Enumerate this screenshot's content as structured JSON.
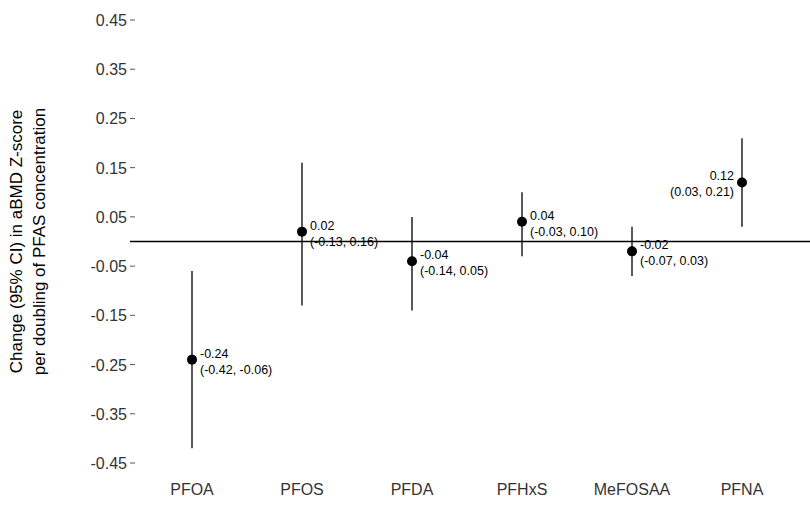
{
  "chart_data": {
    "type": "errorbar",
    "y_label": [
      "Change (95% CI) in aBMD Z-score",
      "per doubling of PFAS concentration"
    ],
    "categories": [
      "PFOA",
      "PFOS",
      "PFDA",
      "PFHxS",
      "MeFOSAA",
      "PFNA"
    ],
    "values": [
      -0.24,
      0.02,
      -0.04,
      0.04,
      -0.02,
      0.12
    ],
    "lower": [
      -0.42,
      -0.13,
      -0.14,
      -0.03,
      -0.07,
      0.03
    ],
    "upper": [
      -0.06,
      0.16,
      0.05,
      0.1,
      0.03,
      0.21
    ],
    "ci_labels": [
      "(-0.42, -0.06)",
      "(-0.13, 0.16)",
      "(-0.14, 0.05)",
      "(-0.03, 0.10)",
      "(-0.07, 0.03)",
      "(0.03, 0.21)"
    ],
    "reference_line": 0,
    "color": "#000000",
    "ylim": [
      -0.45,
      0.45
    ],
    "yticks": [
      -0.45,
      -0.35,
      -0.25,
      -0.15,
      -0.05,
      0.05,
      0.15,
      0.25,
      0.35,
      0.45
    ],
    "data_labels": true,
    "grid": false
  }
}
